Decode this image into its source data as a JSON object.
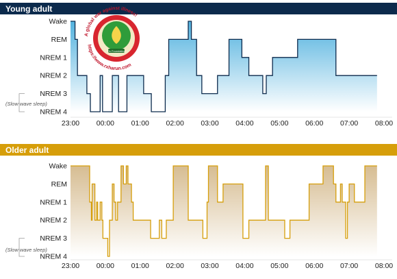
{
  "chart_data": [
    {
      "type": "line",
      "title": "Young adult",
      "header_color": "#0c2a4c",
      "line_color": "#0c2a4c",
      "fill_top": "#4aaedd",
      "fill_bottom": "#ffffff",
      "x_ticks": [
        "23:00",
        "00:00",
        "01:00",
        "02:00",
        "03:00",
        "04:00",
        "05:00",
        "06:00",
        "07:00",
        "08:00"
      ],
      "y_categories": [
        "Wake",
        "REM",
        "NREM 1",
        "NREM 2",
        "NREM 3",
        "NREM 4"
      ],
      "slow_wave_note": "(Slow wave sleep)",
      "xlim": [
        0,
        9
      ],
      "series": [
        {
          "x": [
            0,
            0.13,
            0.2,
            0.47,
            0.57,
            0.62,
            0.85,
            0.92,
            1.13,
            1.2,
            1.28,
            1.38,
            1.5,
            1.62,
            1.9,
            2.1,
            2.32,
            2.62,
            2.72,
            2.78,
            2.82,
            2.87,
            2.97,
            3.2,
            3.38,
            3.47,
            3.52,
            3.62,
            3.77,
            4.12,
            4.22,
            4.55,
            4.72,
            4.92,
            5.12,
            5.38,
            5.52,
            5.62,
            5.8,
            6.1,
            6.52,
            6.85,
            7.62,
            7.7,
            8.8
          ],
          "y": [
            "Wake",
            "REM",
            "NREM 2",
            "NREM 3",
            "NREM 4",
            "NREM 4",
            "NREM 2",
            "NREM 4",
            "NREM 4",
            "NREM 2",
            "NREM 2",
            "NREM 4",
            "NREM 4",
            "NREM 2",
            "NREM 2",
            "NREM 3",
            "NREM 4",
            "NREM 4",
            "NREM 2",
            "NREM 2",
            "REM",
            "REM",
            "REM",
            "REM",
            "Wake",
            "REM",
            "REM",
            "NREM 2",
            "NREM 3",
            "NREM 3",
            "NREM 2",
            "REM",
            "REM",
            "NREM 1",
            "NREM 2",
            "NREM 2",
            "NREM 3",
            "NREM 2",
            "NREM 1",
            "NREM 1",
            "REM",
            "REM",
            "NREM 2",
            "NREM 2",
            "NREM 2"
          ]
        }
      ]
    },
    {
      "type": "line",
      "title": "Older adult",
      "header_color": "#d69e0a",
      "line_color": "#d69e0a",
      "fill_top": "#d4b98c",
      "fill_bottom": "#ffffff",
      "x_ticks": [
        "23:00",
        "00:00",
        "01:00",
        "02:00",
        "03:00",
        "04:00",
        "05:00",
        "06:00",
        "07:00",
        "08:00"
      ],
      "y_categories": [
        "Wake",
        "REM",
        "NREM 1",
        "NREM 2",
        "NREM 3",
        "NREM 4"
      ],
      "slow_wave_note": "(Slow wave sleep)",
      "xlim": [
        0,
        9
      ],
      "series": [
        {
          "x": [
            0,
            0.55,
            0.6,
            0.62,
            0.7,
            0.75,
            0.78,
            0.85,
            0.9,
            0.93,
            1.02,
            1.07,
            1.12,
            1.15,
            1.2,
            1.25,
            1.3,
            1.35,
            1.45,
            1.52,
            1.6,
            1.65,
            1.75,
            1.8,
            2.0,
            2.3,
            2.55,
            2.62,
            2.75,
            2.85,
            2.95,
            3.38,
            3.8,
            3.92,
            3.96,
            4.22,
            4.38,
            4.9,
            4.95,
            5.12,
            5.45,
            5.6,
            5.68,
            6.15,
            6.3,
            6.55,
            6.85,
            7.02,
            7.25,
            7.55,
            7.62,
            7.75,
            7.8,
            7.9,
            7.95,
            8.0,
            8.05,
            8.15,
            8.35,
            8.45,
            8.8
          ],
          "y": [
            "Wake",
            "NREM 1",
            "NREM 2",
            "REM",
            "NREM 2",
            "NREM 1",
            "NREM 2",
            "NREM 1",
            "NREM 2",
            "NREM 3",
            "NREM 3",
            "NREM 4",
            "NREM 2",
            "NREM 2",
            "REM",
            "NREM 1",
            "NREM 2",
            "NREM 1",
            "Wake",
            "REM",
            "Wake",
            "REM",
            "NREM 1",
            "NREM 2",
            "NREM 2",
            "NREM 3",
            "NREM 2",
            "NREM 3",
            "NREM 2",
            "NREM 2",
            "Wake",
            "NREM 2",
            "NREM 3",
            "NREM 1",
            "Wake",
            "NREM 1",
            "REM",
            "REM",
            "NREM 3",
            "NREM 2",
            "NREM 2",
            "Wake",
            "NREM 2",
            "NREM 3",
            "NREM 2",
            "NREM 2",
            "REM",
            "REM",
            "Wake",
            "REM",
            "NREM 1",
            "REM",
            "NREM 1",
            "NREM 3",
            "NREM 1",
            "REM",
            "REM",
            "NREM 1",
            "NREM 1",
            "Wake",
            "Wake"
          ]
        }
      ]
    }
  ],
  "watermark": {
    "arc_text": "A global war against illness!",
    "url_text": "https://www.rxharun.com",
    "foundation_text": "Rx Foundation"
  }
}
